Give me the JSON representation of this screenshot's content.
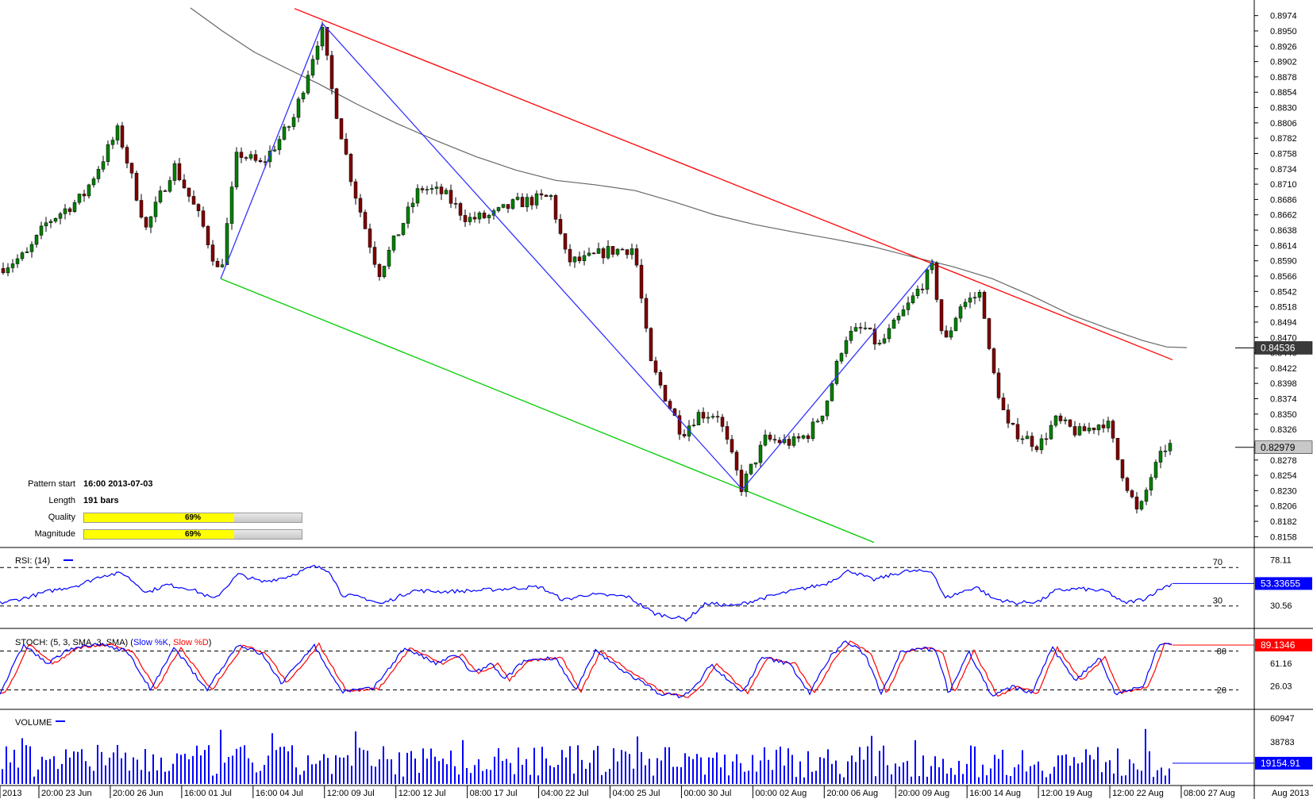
{
  "chart_data": {
    "type": "candlestick",
    "main": {
      "y_ticks": [
        "0.8974",
        "0.8950",
        "0.8926",
        "0.8902",
        "0.8878",
        "0.8854",
        "0.8830",
        "0.8806",
        "0.8782",
        "0.8758",
        "0.8734",
        "0.8710",
        "0.8686",
        "0.8662",
        "0.8638",
        "0.8614",
        "0.8590",
        "0.8566",
        "0.8542",
        "0.8518",
        "0.8494",
        "0.8470",
        "0.8446",
        "0.8422",
        "0.8398",
        "0.8374",
        "0.8350",
        "0.8326",
        "0.8302",
        "0.8278",
        "0.8254",
        "0.8230",
        "0.8206",
        "0.8182",
        "0.8158"
      ],
      "ylim": [
        0.8146,
        0.8986
      ],
      "price_labels": [
        {
          "value": 0.84536,
          "text": "0.84536",
          "style": "dark"
        },
        {
          "value": 0.82979,
          "text": "0.82979",
          "style": "light"
        }
      ],
      "pattern": {
        "upper_line": {
          "from": [
            371,
            0.8985
          ],
          "to": [
            1477,
            0.8435
          ]
        },
        "lower_line": {
          "from": [
            278,
            0.8562
          ],
          "to": [
            1101,
            0.8149
          ]
        },
        "zigzag": [
          [
            278,
            0.8562
          ],
          [
            406,
            0.8962
          ],
          [
            935,
            0.8232
          ],
          [
            1176,
            0.859
          ]
        ]
      },
      "ma_points": [
        [
          240,
          0.8986
        ],
        [
          280,
          0.895
        ],
        [
          320,
          0.8917
        ],
        [
          360,
          0.8892
        ],
        [
          400,
          0.8868
        ],
        [
          450,
          0.8835
        ],
        [
          500,
          0.8805
        ],
        [
          550,
          0.8778
        ],
        [
          600,
          0.8753
        ],
        [
          650,
          0.8732
        ],
        [
          700,
          0.8716
        ],
        [
          750,
          0.8709
        ],
        [
          800,
          0.87
        ],
        [
          850,
          0.8682
        ],
        [
          900,
          0.8662
        ],
        [
          950,
          0.8647
        ],
        [
          1000,
          0.8635
        ],
        [
          1050,
          0.8624
        ],
        [
          1100,
          0.8612
        ],
        [
          1150,
          0.8596
        ],
        [
          1200,
          0.8581
        ],
        [
          1250,
          0.8562
        ],
        [
          1300,
          0.8535
        ],
        [
          1350,
          0.8505
        ],
        [
          1400,
          0.8482
        ],
        [
          1440,
          0.8465
        ],
        [
          1470,
          0.8455
        ],
        [
          1495,
          0.8454
        ]
      ],
      "anchors": [
        [
          0,
          0.8578
        ],
        [
          35,
          0.86
        ],
        [
          60,
          0.865
        ],
        [
          105,
          0.869
        ],
        [
          150,
          0.8795
        ],
        [
          185,
          0.864
        ],
        [
          220,
          0.874
        ],
        [
          255,
          0.865
        ],
        [
          278,
          0.8565
        ],
        [
          300,
          0.876
        ],
        [
          330,
          0.874
        ],
        [
          370,
          0.881
        ],
        [
          406,
          0.8955
        ],
        [
          420,
          0.885
        ],
        [
          445,
          0.871
        ],
        [
          478,
          0.857
        ],
        [
          505,
          0.864
        ],
        [
          530,
          0.8705
        ],
        [
          560,
          0.8695
        ],
        [
          590,
          0.8655
        ],
        [
          620,
          0.866
        ],
        [
          650,
          0.868
        ],
        [
          695,
          0.869
        ],
        [
          715,
          0.859
        ],
        [
          735,
          0.859
        ],
        [
          765,
          0.8605
        ],
        [
          800,
          0.861
        ],
        [
          820,
          0.843
        ],
        [
          860,
          0.832
        ],
        [
          880,
          0.835
        ],
        [
          905,
          0.835
        ],
        [
          935,
          0.8235
        ],
        [
          965,
          0.831
        ],
        [
          1000,
          0.8305
        ],
        [
          1020,
          0.832
        ],
        [
          1040,
          0.836
        ],
        [
          1065,
          0.847
        ],
        [
          1090,
          0.8485
        ],
        [
          1108,
          0.8455
        ],
        [
          1145,
          0.852
        ],
        [
          1176,
          0.858
        ],
        [
          1190,
          0.8455
        ],
        [
          1210,
          0.852
        ],
        [
          1238,
          0.854
        ],
        [
          1248,
          0.8435
        ],
        [
          1270,
          0.833
        ],
        [
          1310,
          0.83
        ],
        [
          1330,
          0.834
        ],
        [
          1360,
          0.832
        ],
        [
          1395,
          0.834
        ],
        [
          1410,
          0.8275
        ],
        [
          1435,
          0.819
        ],
        [
          1450,
          0.825
        ],
        [
          1470,
          0.83
        ]
      ]
    },
    "pattern_info": {
      "pattern_start_label": "Pattern start",
      "pattern_start": "16:00 2013-07-03",
      "length_label": "Length",
      "length": "191 bars",
      "quality_label": "Quality",
      "quality": 0.69,
      "quality_text": "69%",
      "magnitude_label": "Magnitude",
      "magnitude": 0.69,
      "magnitude_text": "69%"
    },
    "rsi": {
      "title": "RSI: (14)",
      "ylim": [
        10,
        85
      ],
      "ticks": [
        "78.11",
        "30.56"
      ],
      "levels": [
        70,
        30
      ],
      "level_labels": [
        "70",
        "30"
      ],
      "last_value": 53.33655,
      "last_text": "53.33655",
      "anchors": [
        [
          0,
          33
        ],
        [
          30,
          38
        ],
        [
          60,
          45
        ],
        [
          100,
          52
        ],
        [
          130,
          62
        ],
        [
          155,
          64
        ],
        [
          185,
          44
        ],
        [
          210,
          52
        ],
        [
          240,
          48
        ],
        [
          270,
          37
        ],
        [
          300,
          63
        ],
        [
          330,
          55
        ],
        [
          360,
          60
        ],
        [
          395,
          71
        ],
        [
          415,
          67
        ],
        [
          430,
          42
        ],
        [
          460,
          38
        ],
        [
          480,
          32
        ],
        [
          520,
          46
        ],
        [
          560,
          45
        ],
        [
          600,
          46
        ],
        [
          640,
          48
        ],
        [
          680,
          50
        ],
        [
          710,
          36
        ],
        [
          740,
          42
        ],
        [
          790,
          40
        ],
        [
          825,
          22
        ],
        [
          865,
          16
        ],
        [
          890,
          33
        ],
        [
          925,
          30
        ],
        [
          960,
          38
        ],
        [
          1000,
          46
        ],
        [
          1040,
          53
        ],
        [
          1070,
          67
        ],
        [
          1100,
          57
        ],
        [
          1140,
          66
        ],
        [
          1175,
          66
        ],
        [
          1190,
          38
        ],
        [
          1230,
          50
        ],
        [
          1250,
          38
        ],
        [
          1280,
          33
        ],
        [
          1310,
          35
        ],
        [
          1330,
          46
        ],
        [
          1360,
          48
        ],
        [
          1395,
          45
        ],
        [
          1415,
          33
        ],
        [
          1440,
          37
        ],
        [
          1465,
          49
        ],
        [
          1477,
          53.3
        ]
      ]
    },
    "stoch": {
      "title": "STOCH: (5, 3, SMA, 3, SMA)",
      "k_label": "Slow %K",
      "d_label": "Slow %D",
      "ylim": [
        -5,
        105
      ],
      "ticks": [
        "61.16",
        "26.03"
      ],
      "levels": [
        80,
        20
      ],
      "level_labels": [
        "80",
        "20"
      ],
      "last_value": 89.1346,
      "last_text": "89.1346",
      "turns": [
        [
          0,
          15
        ],
        [
          30,
          90
        ],
        [
          60,
          60
        ],
        [
          90,
          85
        ],
        [
          130,
          90
        ],
        [
          160,
          80
        ],
        [
          190,
          20
        ],
        [
          220,
          85
        ],
        [
          260,
          20
        ],
        [
          300,
          90
        ],
        [
          330,
          75
        ],
        [
          355,
          30
        ],
        [
          395,
          90
        ],
        [
          430,
          18
        ],
        [
          470,
          22
        ],
        [
          510,
          85
        ],
        [
          550,
          60
        ],
        [
          575,
          75
        ],
        [
          595,
          45
        ],
        [
          620,
          60
        ],
        [
          635,
          35
        ],
        [
          660,
          65
        ],
        [
          700,
          70
        ],
        [
          725,
          18
        ],
        [
          750,
          80
        ],
        [
          785,
          50
        ],
        [
          830,
          15
        ],
        [
          860,
          10
        ],
        [
          880,
          30
        ],
        [
          895,
          60
        ],
        [
          935,
          15
        ],
        [
          960,
          70
        ],
        [
          995,
          60
        ],
        [
          1020,
          15
        ],
        [
          1045,
          70
        ],
        [
          1065,
          95
        ],
        [
          1090,
          75
        ],
        [
          1110,
          15
        ],
        [
          1135,
          80
        ],
        [
          1160,
          85
        ],
        [
          1180,
          80
        ],
        [
          1195,
          15
        ],
        [
          1220,
          80
        ],
        [
          1250,
          10
        ],
        [
          1275,
          25
        ],
        [
          1300,
          15
        ],
        [
          1325,
          85
        ],
        [
          1355,
          35
        ],
        [
          1385,
          70
        ],
        [
          1405,
          15
        ],
        [
          1440,
          25
        ],
        [
          1460,
          92
        ],
        [
          1477,
          89
        ]
      ]
    },
    "volume": {
      "title": "VOLUME",
      "ylim": [
        0,
        66000
      ],
      "ticks": [
        "60947",
        "38783"
      ],
      "last_value": 19154.91,
      "last_text": "19154.91"
    },
    "x_labels": [
      "2013",
      "20:00 23 Jun",
      "20:00 26 Jun",
      "16:00 01 Jul",
      "16:00 04 Jul",
      "12:00 09 Jul",
      "12:00 12 Jul",
      "08:00 17 Jul",
      "04:00 22 Jul",
      "04:00 25 Jul",
      "00:00 30 Jul",
      "00:00 02 Aug",
      "20:00 06 Aug",
      "20:00 09 Aug",
      "16:00 14 Aug",
      "12:00 19 Aug",
      "12:00 22 Aug",
      "08:00 27 Aug"
    ],
    "x_axis_right_label": "Aug 2013"
  },
  "colors": {
    "bull": "#008000",
    "bear": "#800000",
    "wick": "#000000",
    "upper_line": "#ff0000",
    "lower_line": "#00cc00",
    "zigzag": "#3333ff",
    "ma": "#666666",
    "rsi": "#0000ff",
    "stoch_k": "#0000ff",
    "stoch_d": "#ff0000",
    "volume": "#0000ff",
    "label_red": "#ff0000",
    "label_blue": "#0000ff",
    "label_dark": "#3a3a3a",
    "label_light": "#c8c8c8"
  }
}
